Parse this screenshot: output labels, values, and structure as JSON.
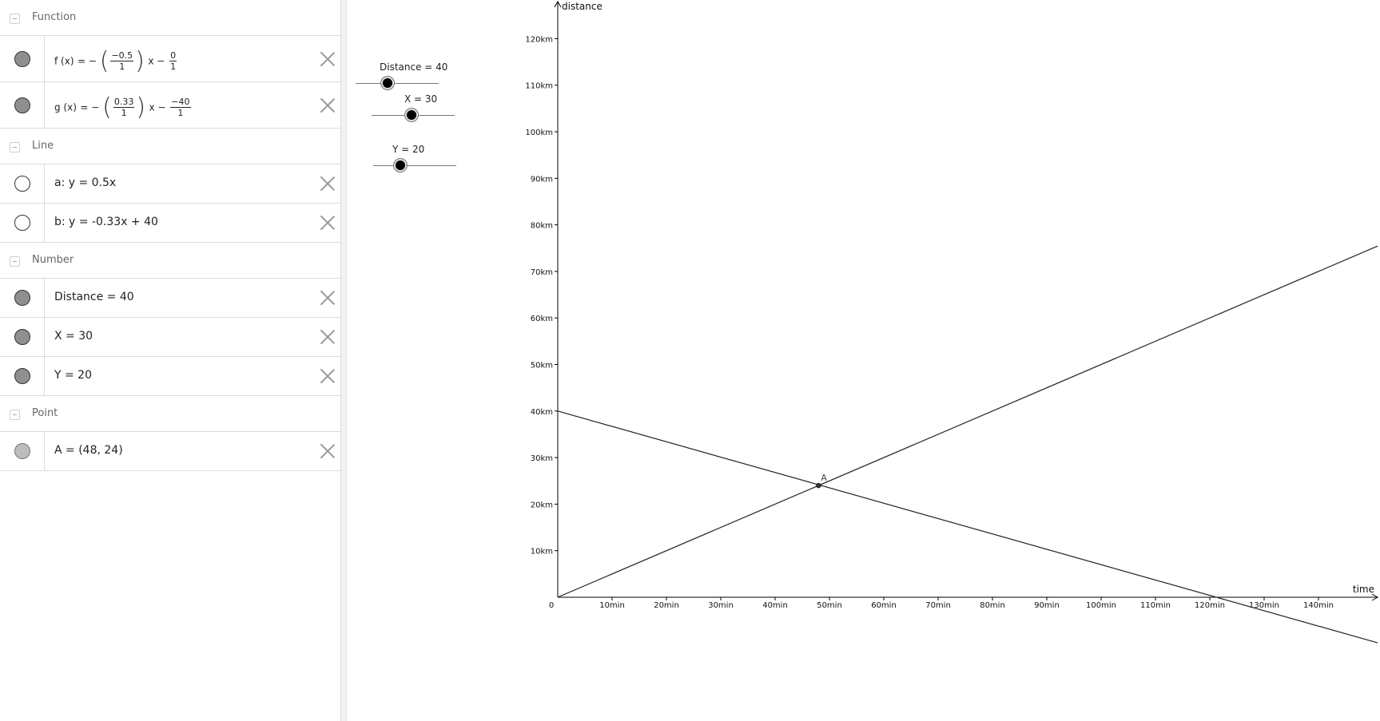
{
  "algebra": {
    "categories": {
      "function": "Function",
      "line": "Line",
      "number": "Number",
      "point": "Point"
    },
    "functions": {
      "f": {
        "name": "f (x)",
        "a_num": "−0.5",
        "a_den": "1",
        "b_num": "0",
        "b_den": "1"
      },
      "g": {
        "name": "g (x)",
        "a_num": "0.33",
        "a_den": "1",
        "b_num": "−40",
        "b_den": "1"
      }
    },
    "lines": {
      "a": "a: y = 0.5x",
      "b": "b: y = -0.33x + 40"
    },
    "numbers": {
      "distance": "Distance = 40",
      "x": "X = 30",
      "y": "Y = 20"
    },
    "points": {
      "A": "A = (48, 24)"
    }
  },
  "sliders": {
    "distance": {
      "label": "Distance = 40"
    },
    "x": {
      "label": "X = 30"
    },
    "y": {
      "label": "Y = 20"
    }
  },
  "chart_data": {
    "type": "line",
    "xlabel": "time",
    "ylabel": "distance",
    "x_ticks": [
      "10min",
      "20min",
      "30min",
      "40min",
      "50min",
      "60min",
      "70min",
      "80min",
      "90min",
      "100min",
      "110min",
      "120min",
      "130min",
      "140min"
    ],
    "x_tick_values": [
      10,
      20,
      30,
      40,
      50,
      60,
      70,
      80,
      90,
      100,
      110,
      120,
      130,
      140
    ],
    "y_ticks": [
      "10km",
      "20km",
      "30km",
      "40km",
      "50km",
      "60km",
      "70km",
      "80km",
      "90km",
      "100km",
      "110km",
      "120km"
    ],
    "y_tick_values": [
      10,
      20,
      30,
      40,
      50,
      60,
      70,
      80,
      90,
      100,
      110,
      120
    ],
    "origin_label": "0",
    "series": [
      {
        "expression": "y = 0.5x",
        "slope": 0.5,
        "intercept": 0
      },
      {
        "expression": "y = -0.33x + 40",
        "slope": -0.33,
        "intercept": 40
      }
    ],
    "points": [
      {
        "label": "A",
        "x": 48,
        "y": 24
      }
    ],
    "colors": {
      "line": "#222222",
      "axis": "#000000",
      "point": "#333333"
    }
  }
}
